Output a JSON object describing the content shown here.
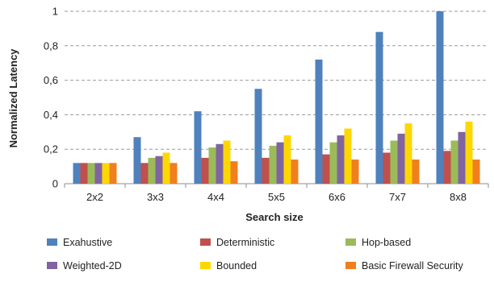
{
  "chart_data": {
    "type": "bar",
    "title": "",
    "xlabel": "Search size",
    "ylabel": "Normalized Latency",
    "ylim": [
      0,
      1
    ],
    "yticks": [
      "0",
      "0,2",
      "0,4",
      "0,6",
      "0,8",
      "1"
    ],
    "categories": [
      "2x2",
      "3x3",
      "4x4",
      "5x5",
      "6x6",
      "7x7",
      "8x8"
    ],
    "grid": true,
    "legend_placement": "bottom",
    "series": [
      {
        "name": "Exahustive",
        "color": "#4F81BD",
        "values": [
          0.12,
          0.27,
          0.42,
          0.55,
          0.72,
          0.88,
          1.0
        ]
      },
      {
        "name": "Deterministic",
        "color": "#C0504D",
        "values": [
          0.12,
          0.12,
          0.15,
          0.15,
          0.17,
          0.18,
          0.19
        ]
      },
      {
        "name": "Hop-based",
        "color": "#9BBB59",
        "values": [
          0.12,
          0.15,
          0.21,
          0.22,
          0.24,
          0.25,
          0.25
        ]
      },
      {
        "name": "Weighted-2D",
        "color": "#8064A2",
        "values": [
          0.12,
          0.16,
          0.23,
          0.24,
          0.28,
          0.29,
          0.3
        ]
      },
      {
        "name": "Bounded",
        "color": "#FFD700",
        "values": [
          0.12,
          0.18,
          0.25,
          0.28,
          0.32,
          0.35,
          0.36
        ]
      },
      {
        "name": "Basic Firewall Security",
        "color": "#F07F1E",
        "values": [
          0.12,
          0.12,
          0.13,
          0.14,
          0.14,
          0.14,
          0.14
        ]
      }
    ]
  }
}
